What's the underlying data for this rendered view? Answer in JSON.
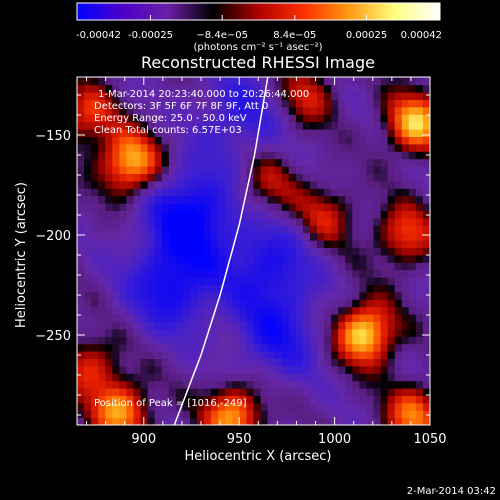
{
  "chart_data": {
    "type": "heatmap",
    "title": "Reconstructed RHESSI Image",
    "xlabel": "Heliocentric X (arcsec)",
    "ylabel": "Heliocentric Y (arcsec)",
    "xlim": [
      865,
      1050
    ],
    "ylim": [
      -295,
      -121
    ],
    "x_ticks": [
      900,
      950,
      1000,
      1050
    ],
    "y_ticks": [
      -150,
      -200,
      -250
    ],
    "colorbar": {
      "min": -0.00042,
      "max": 0.00042,
      "tick_values": [
        -0.00042,
        -0.00025,
        -8.4e-05,
        8.4e-05,
        0.00025,
        0.00042
      ],
      "tick_labels": [
        "-0.00042",
        "-0.00025",
        "−8.4e−05",
        "8.4e−05",
        "0.00025",
        "0.00042"
      ],
      "unit_label": "(photons cm⁻² s⁻¹ asec⁻²)",
      "colors": [
        "#0000ff",
        "#4b00c8",
        "#6a1fa6",
        "#000000",
        "#b00000",
        "#ff3000",
        "#ff9a10",
        "#ffff80",
        "#ffffff"
      ]
    },
    "info_lines": [
      "1-Mar-2014 20:23:40.000 to 20:26:44.000",
      "Detectors: 3F 5F 6F 7F 8F 9F, Att 0",
      "Energy Range: 25.0 - 50.0 keV",
      "Clean    Total counts: 6.57E+03"
    ],
    "peak_label": "Position of Peak = [1016,-249]",
    "peak_position": [
      1016,
      -249
    ],
    "limb_curve": [
      [
        916,
        -295
      ],
      [
        930,
        -260
      ],
      [
        940,
        -230
      ],
      [
        950,
        -195
      ],
      [
        958,
        -160
      ],
      [
        965,
        -121
      ]
    ],
    "hot_sources": [
      {
        "x": 893,
        "y": -164,
        "strength": 1.0
      },
      {
        "x": 870,
        "y": -140,
        "strength": 0.6
      },
      {
        "x": 872,
        "y": -265,
        "strength": 0.55
      },
      {
        "x": 888,
        "y": -288,
        "strength": 0.85
      },
      {
        "x": 947,
        "y": -290,
        "strength": 0.9
      },
      {
        "x": 1016,
        "y": -249,
        "strength": 1.1
      },
      {
        "x": 1042,
        "y": -144,
        "strength": 0.95
      },
      {
        "x": 1037,
        "y": -200,
        "strength": 0.65
      },
      {
        "x": 1042,
        "y": -290,
        "strength": 0.75
      },
      {
        "x": 995,
        "y": -190,
        "strength": 0.5
      },
      {
        "x": 985,
        "y": -130,
        "strength": 0.5
      },
      {
        "x": 965,
        "y": -175,
        "strength": 0.45
      }
    ],
    "cold_sources": [
      {
        "x": 925,
        "y": -190,
        "strength": 0.85
      },
      {
        "x": 915,
        "y": -225,
        "strength": 0.7
      },
      {
        "x": 965,
        "y": -215,
        "strength": 0.6
      },
      {
        "x": 970,
        "y": -250,
        "strength": 0.55
      },
      {
        "x": 950,
        "y": -140,
        "strength": 0.45
      }
    ]
  },
  "footer": {
    "timestamp": "2-Mar-2014 03:42"
  },
  "colors": {
    "background": "#000000",
    "limb_line": "#ffffff",
    "axis": "#ffffff"
  }
}
